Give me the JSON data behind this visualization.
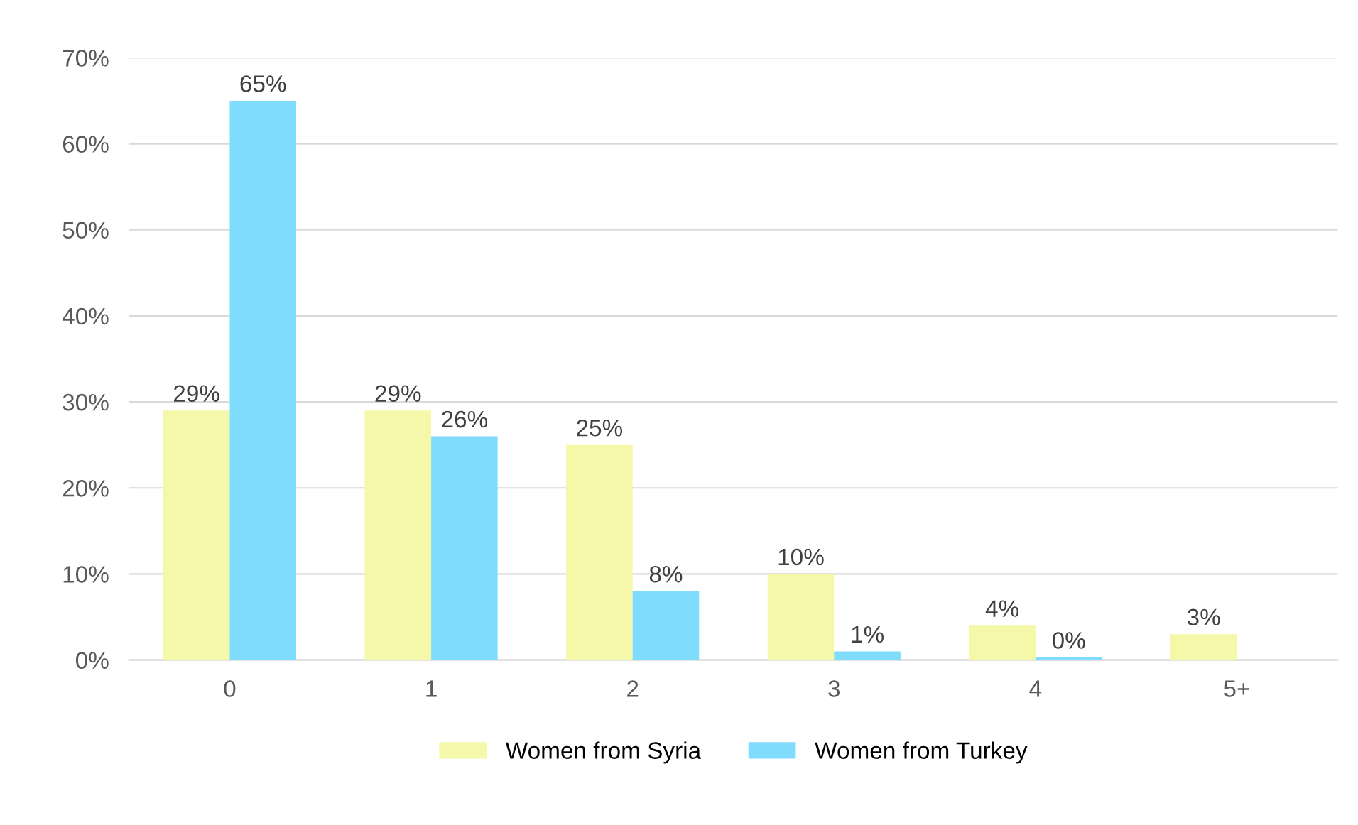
{
  "chart_data": {
    "type": "bar",
    "categories": [
      "0",
      "1",
      "2",
      "3",
      "4",
      "5+"
    ],
    "series": [
      {
        "name": "Women from Syria",
        "color": "#f5f7a9",
        "values": [
          29,
          29,
          25,
          10,
          4,
          3
        ],
        "value_labels": [
          "29%",
          "29%",
          "25%",
          "10%",
          "4%",
          "3%"
        ]
      },
      {
        "name": "Women from Turkey",
        "color": "#80dcfd",
        "values": [
          65,
          26,
          8,
          1,
          0.3,
          null
        ],
        "value_labels": [
          "65%",
          "26%",
          "8%",
          "1%",
          "0%",
          null
        ]
      }
    ],
    "ylim": [
      0,
      70
    ],
    "yticks": [
      {
        "value": 0,
        "label": "0%"
      },
      {
        "value": 10,
        "label": "10%"
      },
      {
        "value": 20,
        "label": "20%"
      },
      {
        "value": 30,
        "label": "30%"
      },
      {
        "value": 40,
        "label": "40%"
      },
      {
        "value": 50,
        "label": "50%"
      },
      {
        "value": 60,
        "label": "60%"
      },
      {
        "value": 70,
        "label": "70%"
      }
    ],
    "grid": "y",
    "legend": "bottom"
  }
}
